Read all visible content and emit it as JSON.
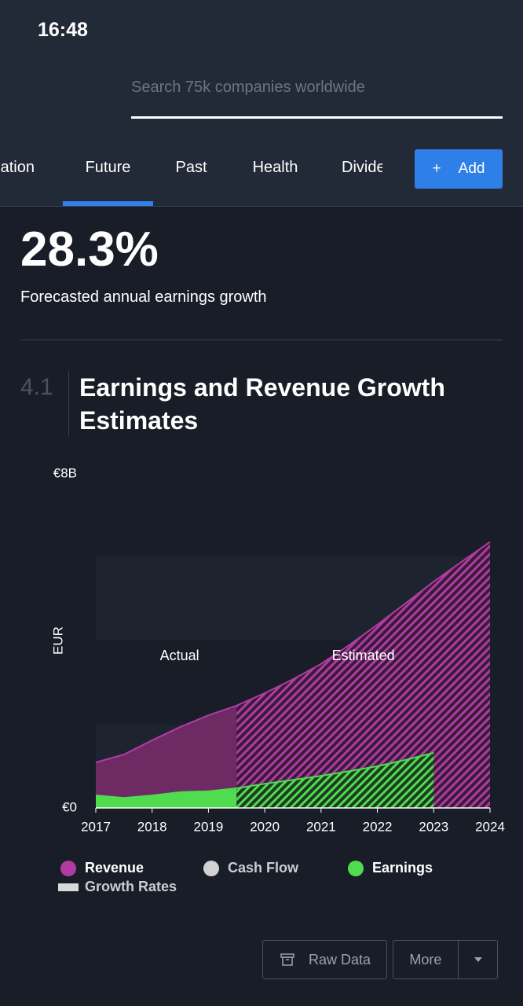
{
  "status_bar": {
    "time": "16:48"
  },
  "search": {
    "placeholder": "Search 75k companies worldwide"
  },
  "tabs": {
    "items": [
      "Valuation",
      "Future",
      "Past",
      "Health",
      "Dividends"
    ],
    "active": 1
  },
  "add_button": {
    "label": "Add"
  },
  "headline": {
    "value": "28.3%",
    "caption": "Forecasted annual earnings growth"
  },
  "section": {
    "number": "4.1",
    "title": "Earnings and Revenue Growth Estimates"
  },
  "chart_data": {
    "type": "area",
    "y_label": "EUR",
    "x": [
      2017,
      2017.5,
      2018,
      2018.5,
      2019,
      2019.5,
      2020,
      2020.5,
      2021,
      2021.5,
      2022,
      2022.5,
      2023,
      2023.5,
      2024
    ],
    "series": [
      {
        "name": "Revenue",
        "color": "#b03ca2",
        "values": [
          1.09,
          1.28,
          1.62,
          1.94,
          2.22,
          2.45,
          2.75,
          3.08,
          3.45,
          3.9,
          4.39,
          4.9,
          5.42,
          5.9,
          6.37
        ]
      },
      {
        "name": "Earnings",
        "color": "#4fdc4f",
        "values": [
          0.3,
          0.24,
          0.3,
          0.38,
          0.4,
          0.47,
          0.58,
          0.67,
          0.77,
          0.88,
          1.0,
          1.15,
          1.32,
          null,
          null
        ]
      }
    ],
    "other_legend": [
      {
        "name": "Cash Flow",
        "color": "#d2d2d2",
        "shape": "circle"
      },
      {
        "name": "Growth Rates",
        "color": "#d8d8d8",
        "shape": "bar"
      }
    ],
    "forecast_start": 2019.5,
    "actual_label": "Actual",
    "estimated_label": "Estimated",
    "xlim": [
      2017,
      2024
    ],
    "xticks": [
      2017,
      2018,
      2019,
      2020,
      2021,
      2022,
      2023,
      2024
    ],
    "ylim": [
      0,
      8
    ],
    "yticks": [
      {
        "value": 0,
        "label": "€0"
      },
      {
        "value": 8,
        "label": "€8B"
      }
    ]
  },
  "footer_buttons": {
    "raw_data": "Raw Data",
    "more": "More"
  }
}
